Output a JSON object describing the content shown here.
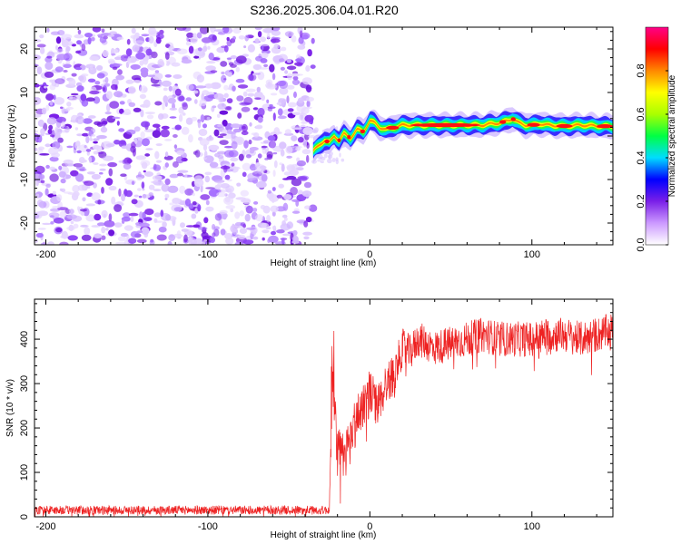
{
  "title": "S236.2025.306.04.01.R20",
  "chart_data": [
    {
      "type": "heatmap",
      "title": "S236.2025.306.04.01.R20",
      "xlabel": "Height of straight line (km)",
      "ylabel": "Frequency (Hz)",
      "xlim": [
        -207,
        150
      ],
      "ylim": [
        -25,
        25
      ],
      "xticks": [
        -200,
        -100,
        0,
        100
      ],
      "xtick_labels": [
        "-200",
        "-100",
        "0",
        "100"
      ],
      "yticks": [
        -20,
        -10,
        0,
        10,
        20
      ],
      "ytick_labels": [
        "-20",
        "-10",
        "0",
        "10",
        "20"
      ],
      "noise_region_x": [
        -207,
        -35
      ],
      "ridge_x": [
        -35,
        -31,
        -28,
        -25,
        -22,
        -19,
        -16,
        -12,
        -8,
        -4,
        0,
        3,
        6,
        10,
        15,
        20,
        30,
        40,
        50,
        60,
        70,
        75,
        80,
        85,
        88,
        92,
        96,
        100,
        105,
        110,
        120,
        130,
        140,
        150
      ],
      "ridge_y": [
        -3.5,
        -2.0,
        -1.0,
        -1.5,
        0.0,
        -1.0,
        0.5,
        -0.5,
        1.5,
        1.0,
        3.5,
        3.0,
        2.0,
        1.5,
        2.0,
        2.5,
        2.5,
        2.5,
        2.5,
        2.5,
        2.5,
        2.8,
        3.0,
        3.5,
        4.0,
        3.0,
        2.5,
        2.5,
        2.8,
        2.5,
        2.3,
        2.5,
        2.3,
        2.2
      ],
      "colorbar": {
        "label": "Normalized spectral amplitude",
        "range": [
          0,
          1
        ],
        "ticks": [
          0.0,
          0.2,
          0.4,
          0.6,
          0.8
        ],
        "tick_labels": [
          "0.0",
          "0.2",
          "0.4",
          "0.6",
          "0.8"
        ],
        "colors": [
          "#ffffff",
          "#cc99ff",
          "#7a1fe8",
          "#0000ff",
          "#00ddff",
          "#00ff44",
          "#aaff00",
          "#ffff00",
          "#ff8800",
          "#ff0000",
          "#ff0088"
        ]
      }
    },
    {
      "type": "line",
      "xlabel": "Height of straight line (km)",
      "ylabel": "SNR (10 * v/v)",
      "xlim": [
        -207,
        150
      ],
      "ylim": [
        0,
        490
      ],
      "xticks": [
        -200,
        -100,
        0,
        100
      ],
      "xtick_labels": [
        "-200",
        "-100",
        "0",
        "100"
      ],
      "yticks": [
        0,
        100,
        200,
        300,
        400
      ],
      "ytick_labels": [
        "0",
        "100",
        "200",
        "300",
        "400"
      ],
      "line_color": "#ee2222",
      "series": [
        {
          "name": "SNR",
          "x": [
            -207,
            -150,
            -100,
            -50,
            -25,
            -23,
            -20,
            -17,
            -14,
            -10,
            -5,
            0,
            5,
            10,
            15,
            20,
            25,
            30,
            40,
            50,
            60,
            70,
            80,
            90,
            100,
            110,
            120,
            130,
            140,
            150
          ],
          "y": [
            15,
            15,
            15,
            15,
            15,
            320,
            150,
            130,
            150,
            200,
            250,
            280,
            250,
            300,
            320,
            380,
            370,
            400,
            380,
            390,
            400,
            410,
            400,
            400,
            400,
            410,
            410,
            400,
            410,
            420
          ],
          "spread": [
            10,
            10,
            10,
            10,
            10,
            60,
            60,
            60,
            60,
            60,
            55,
            55,
            50,
            50,
            45,
            45,
            40,
            40,
            40,
            40,
            40,
            40,
            40,
            40,
            40,
            40,
            40,
            40,
            40,
            40
          ]
        }
      ]
    }
  ]
}
